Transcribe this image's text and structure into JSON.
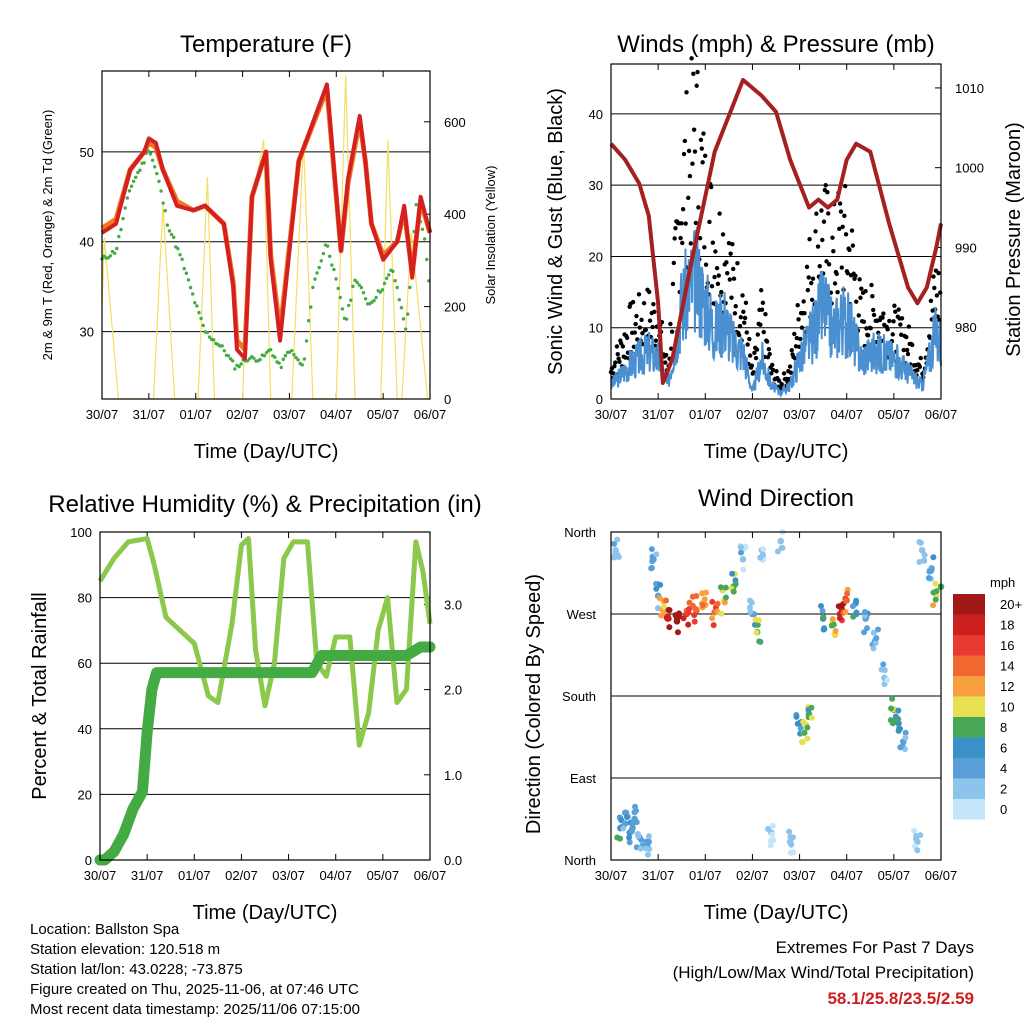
{
  "chart_data": [
    {
      "type": "line",
      "title": "Temperature (F)",
      "xlabel": "Time (Day/UTC)",
      "ylabel": "2m & 9m T (Red, Orange) & 2m Td (Green)",
      "ylabel_right": "Solar Insolation (Yellow)",
      "x_ticks": [
        "30/07",
        "31/07",
        "01/07",
        "02/07",
        "03/07",
        "04/07",
        "05/07",
        "06/07"
      ],
      "ylim": [
        22.5,
        59
      ],
      "y_ticks": [
        30,
        40,
        50
      ],
      "ylim_right": [
        0,
        710
      ],
      "y_ticks_right": [
        0,
        200,
        400,
        600
      ],
      "series": [
        {
          "name": "2m T",
          "color": "#d42020",
          "x": [
            0,
            0.3,
            0.6,
            0.9,
            1.0,
            1.15,
            1.3,
            1.6,
            1.95,
            2.2,
            2.6,
            2.8,
            2.88,
            3.05,
            3.2,
            3.5,
            3.6,
            3.8,
            4.2,
            4.8,
            5.1,
            5.25,
            5.5,
            5.62,
            5.75,
            6.0,
            6.3,
            6.45,
            6.62,
            6.8,
            7.0
          ],
          "values": [
            41,
            42,
            48,
            50,
            51.5,
            51,
            48,
            44,
            43.5,
            44,
            42,
            35,
            28,
            27,
            45,
            50,
            38,
            29,
            49,
            57.5,
            39,
            47,
            54,
            49,
            42,
            38,
            40,
            44,
            36,
            45,
            41
          ]
        },
        {
          "name": "9m T",
          "color": "#f07820",
          "x": [
            0,
            0.3,
            0.6,
            0.9,
            1.0,
            1.15,
            1.3,
            1.6,
            1.95,
            2.2,
            2.6,
            2.8,
            2.88,
            3.05,
            3.2,
            3.5,
            3.6,
            3.8,
            4.2,
            4.8,
            5.1,
            5.25,
            5.5,
            5.62,
            5.75,
            6.0,
            6.3,
            6.45,
            6.62,
            6.8,
            7.0
          ],
          "values": [
            41.5,
            42.5,
            48,
            50,
            51,
            50.5,
            48,
            44.5,
            43.5,
            44,
            42,
            35.5,
            29,
            28,
            45,
            50,
            38.5,
            30,
            49,
            57,
            39,
            46.5,
            53.5,
            49,
            42,
            38.5,
            40,
            43.5,
            36.5,
            44.5,
            41
          ]
        },
        {
          "name": "2m Td",
          "color": "#44aa44",
          "x": [
            0,
            0.3,
            0.6,
            0.9,
            1.0,
            1.2,
            1.4,
            1.7,
            2.0,
            2.2,
            2.4,
            2.6,
            2.85,
            3.1,
            3.4,
            3.6,
            3.8,
            4.0,
            4.3,
            4.5,
            4.8,
            5.2,
            5.4,
            5.7,
            6.0,
            6.2,
            6.5,
            6.7,
            6.9,
            7.0
          ],
          "values": [
            38,
            39,
            46,
            49,
            50.5,
            47,
            42,
            38,
            33,
            30,
            29,
            28,
            26,
            27,
            27,
            28,
            26,
            28,
            26,
            35,
            40,
            31,
            36,
            33,
            35,
            37,
            30,
            44,
            40,
            34
          ]
        },
        {
          "name": "Solar Insolation",
          "color": "#f5de60",
          "axis": "right",
          "x": [
            0,
            0.05,
            0.35,
            0.6,
            0.7,
            1.1,
            1.3,
            1.55,
            1.7,
            2.05,
            2.25,
            2.4,
            2.55,
            3.0,
            3.15,
            3.45,
            3.6,
            3.9,
            4.05,
            4.3,
            4.5,
            4.85,
            5.0,
            5.2,
            5.4,
            5.55,
            5.7,
            5.95,
            6.1,
            6.3,
            6.4,
            6.6,
            6.95,
            7.0
          ],
          "values": [
            200,
            350,
            0,
            0,
            0,
            0,
            420,
            0,
            0,
            0,
            480,
            0,
            0,
            0,
            400,
            560,
            0,
            0,
            0,
            560,
            0,
            0,
            0,
            700,
            0,
            0,
            0,
            0,
            560,
            0,
            0,
            360,
            0,
            0
          ]
        }
      ]
    },
    {
      "type": "scatter",
      "title": "Winds (mph) & Pressure (mb)",
      "xlabel": "Time (Day/UTC)",
      "ylabel": "Sonic Wind & Gust (Blue, Black)",
      "ylabel_right": "Station Pressure (Maroon)",
      "x_ticks": [
        "30/07",
        "31/07",
        "01/07",
        "02/07",
        "03/07",
        "04/07",
        "05/07",
        "06/07"
      ],
      "ylim": [
        0,
        47
      ],
      "y_ticks": [
        0,
        10,
        20,
        30,
        40
      ],
      "ylim_right": [
        971,
        1013
      ],
      "y_ticks_right": [
        980,
        990,
        1000,
        1010
      ],
      "series": [
        {
          "name": "Pressure",
          "color": "#a52020",
          "type": "line",
          "axis": "right",
          "x": [
            0,
            0.3,
            0.6,
            0.8,
            1.0,
            1.1,
            1.3,
            1.7,
            2.2,
            2.6,
            2.8,
            3.2,
            3.5,
            3.8,
            4.2,
            4.4,
            4.6,
            4.8,
            5.0,
            5.2,
            5.5,
            5.9,
            6.3,
            6.5,
            6.7,
            6.9,
            7.0
          ],
          "values": [
            1003,
            1001,
            998,
            994,
            983,
            973,
            976,
            988,
            1002,
            1008,
            1011,
            1009,
            1007,
            1001,
            995,
            996,
            995,
            996,
            1001,
            1003,
            1002,
            993,
            985,
            983,
            985,
            990,
            993
          ]
        },
        {
          "name": "Sonic Wind",
          "color": "#4a90d0",
          "x": [
            0,
            0.4,
            0.8,
            1.0,
            1.2,
            1.5,
            1.8,
            2.0,
            2.2,
            2.4,
            2.6,
            2.8,
            3.0,
            3.2,
            3.4,
            3.6,
            3.8,
            4.0,
            4.3,
            4.5,
            4.7,
            4.9,
            5.1,
            5.3,
            5.6,
            6.0,
            6.3,
            6.6,
            6.9,
            7.0
          ],
          "values": [
            2,
            5,
            7,
            6,
            2,
            14,
            18,
            14,
            10,
            12,
            8,
            7,
            1,
            6,
            2,
            1,
            2,
            6,
            10,
            14,
            10,
            12,
            10,
            6,
            7,
            6,
            4,
            2,
            10,
            8
          ]
        },
        {
          "name": "Gust",
          "color": "#000000",
          "x": [
            0,
            0.4,
            0.8,
            1.0,
            1.2,
            1.5,
            1.8,
            2.0,
            2.2,
            2.4,
            2.6,
            2.8,
            3.0,
            3.2,
            3.4,
            3.6,
            3.8,
            4.0,
            4.3,
            4.5,
            4.7,
            4.9,
            5.1,
            5.3,
            5.6,
            6.0,
            6.3,
            6.6,
            6.9,
            7.0
          ],
          "values": [
            4,
            10,
            12,
            11,
            4,
            30,
            38,
            28,
            22,
            22,
            16,
            14,
            3,
            12,
            4,
            2,
            4,
            12,
            20,
            24,
            20,
            24,
            20,
            12,
            12,
            10,
            8,
            4,
            16,
            14
          ]
        }
      ]
    },
    {
      "type": "line",
      "title": "Relative Humidity (%) & Precipitation (in)",
      "xlabel": "Time (Day/UTC)",
      "ylabel": "Percent & Total Rainfall",
      "x_ticks": [
        "30/07",
        "31/07",
        "01/07",
        "02/07",
        "03/07",
        "04/07",
        "05/07",
        "06/07"
      ],
      "ylim": [
        0,
        100
      ],
      "y_ticks": [
        0,
        20,
        40,
        60,
        80,
        100
      ],
      "ylim_right": [
        0,
        3.85
      ],
      "y_ticks_right": [
        "0.0",
        "1.0",
        "2.0",
        "3.0"
      ],
      "series": [
        {
          "name": "Relative Humidity",
          "color": "#8cc84b",
          "x": [
            0,
            0.3,
            0.6,
            1.0,
            1.15,
            1.4,
            1.7,
            2.0,
            2.3,
            2.5,
            2.6,
            2.8,
            3.0,
            3.15,
            3.3,
            3.5,
            3.7,
            3.9,
            4.1,
            4.4,
            4.6,
            4.8,
            5.0,
            5.3,
            5.5,
            5.7,
            5.9,
            6.1,
            6.3,
            6.5,
            6.7,
            6.85,
            7.0
          ],
          "values": [
            85,
            92,
            97,
            98,
            90,
            74,
            70,
            66,
            50,
            48,
            56,
            72,
            96,
            98,
            64,
            47,
            60,
            92,
            97,
            97,
            60,
            56,
            68,
            68,
            35,
            45,
            70,
            80,
            48,
            52,
            97,
            88,
            72
          ]
        },
        {
          "name": "Total Precipitation",
          "color": "#44aa44",
          "axis": "right",
          "x": [
            0,
            0.1,
            0.3,
            0.5,
            0.7,
            0.9,
            1.0,
            1.1,
            1.2,
            1.5,
            2.0,
            3.0,
            4.5,
            4.7,
            5.0,
            5.5,
            6.0,
            6.5,
            6.8,
            7.0
          ],
          "values": [
            0,
            0,
            0.1,
            0.3,
            0.6,
            0.8,
            1.5,
            2.0,
            2.2,
            2.2,
            2.2,
            2.2,
            2.2,
            2.4,
            2.4,
            2.4,
            2.4,
            2.4,
            2.5,
            2.5
          ]
        }
      ]
    },
    {
      "type": "scatter",
      "title": "Wind Direction",
      "xlabel": "Time (Day/UTC)",
      "ylabel": "Direction (Colored By Speed)",
      "x_ticks": [
        "30/07",
        "31/07",
        "01/07",
        "02/07",
        "03/07",
        "04/07",
        "05/07",
        "06/07"
      ],
      "y_ticks": [
        "North",
        "East",
        "South",
        "West",
        "North"
      ],
      "ylim": [
        0,
        360
      ],
      "legend": {
        "title": "mph",
        "levels": [
          "20+",
          "18",
          "16",
          "14",
          "12",
          "10",
          "8",
          "6",
          "4",
          "2",
          "0"
        ],
        "colors": [
          "#a01818",
          "#cc2020",
          "#e83a30",
          "#f06830",
          "#f8a040",
          "#e8e050",
          "#48a858",
          "#3c90c8",
          "#5a9fd8",
          "#8cc4ec",
          "#c4e6f8"
        ]
      },
      "points": [
        {
          "x": 0.2,
          "deg": 35,
          "mph": 6
        },
        {
          "x": 0.3,
          "deg": 40,
          "mph": 4
        },
        {
          "x": 0.4,
          "deg": 30,
          "mph": 6
        },
        {
          "x": 0.5,
          "deg": 45,
          "mph": 4
        },
        {
          "x": 0.6,
          "deg": 25,
          "mph": 3
        },
        {
          "x": 0.8,
          "deg": 20,
          "mph": 3
        },
        {
          "x": 0.1,
          "deg": 340,
          "mph": 2
        },
        {
          "x": 0.9,
          "deg": 330,
          "mph": 3
        },
        {
          "x": 1.0,
          "deg": 290,
          "mph": 4
        },
        {
          "x": 1.1,
          "deg": 275,
          "mph": 12
        },
        {
          "x": 1.2,
          "deg": 265,
          "mph": 18
        },
        {
          "x": 1.4,
          "deg": 262,
          "mph": 20
        },
        {
          "x": 1.6,
          "deg": 270,
          "mph": 16
        },
        {
          "x": 1.8,
          "deg": 275,
          "mph": 14
        },
        {
          "x": 2.0,
          "deg": 280,
          "mph": 12
        },
        {
          "x": 2.2,
          "deg": 272,
          "mph": 14
        },
        {
          "x": 2.4,
          "deg": 285,
          "mph": 10
        },
        {
          "x": 2.6,
          "deg": 300,
          "mph": 8
        },
        {
          "x": 2.8,
          "deg": 330,
          "mph": 2
        },
        {
          "x": 3.0,
          "deg": 270,
          "mph": 4
        },
        {
          "x": 3.1,
          "deg": 250,
          "mph": 8
        },
        {
          "x": 3.2,
          "deg": 340,
          "mph": 1
        },
        {
          "x": 3.4,
          "deg": 30,
          "mph": 1
        },
        {
          "x": 3.6,
          "deg": 350,
          "mph": 1
        },
        {
          "x": 3.8,
          "deg": 20,
          "mph": 1
        },
        {
          "x": 4.0,
          "deg": 150,
          "mph": 6
        },
        {
          "x": 4.1,
          "deg": 140,
          "mph": 10
        },
        {
          "x": 4.2,
          "deg": 160,
          "mph": 8
        },
        {
          "x": 4.5,
          "deg": 265,
          "mph": 6
        },
        {
          "x": 4.7,
          "deg": 260,
          "mph": 10
        },
        {
          "x": 4.9,
          "deg": 275,
          "mph": 18
        },
        {
          "x": 5.0,
          "deg": 285,
          "mph": 14
        },
        {
          "x": 5.2,
          "deg": 270,
          "mph": 6
        },
        {
          "x": 5.4,
          "deg": 265,
          "mph": 4
        },
        {
          "x": 5.6,
          "deg": 240,
          "mph": 3
        },
        {
          "x": 5.8,
          "deg": 200,
          "mph": 2
        },
        {
          "x": 6.0,
          "deg": 165,
          "mph": 8
        },
        {
          "x": 6.1,
          "deg": 150,
          "mph": 6
        },
        {
          "x": 6.2,
          "deg": 130,
          "mph": 4
        },
        {
          "x": 6.5,
          "deg": 20,
          "mph": 1
        },
        {
          "x": 6.6,
          "deg": 340,
          "mph": 2
        },
        {
          "x": 6.8,
          "deg": 320,
          "mph": 4
        },
        {
          "x": 6.9,
          "deg": 290,
          "mph": 10
        },
        {
          "x": 7.0,
          "deg": 300,
          "mph": 8
        }
      ]
    }
  ],
  "info": {
    "location": "Location: Ballston Spa",
    "elevation": "Station elevation: 120.518 m",
    "latlon": "Station lat/lon: 43.0228; -73.875",
    "created": "Figure created on Thu, 2025-11-06, at 07:46 UTC",
    "recent": "Most recent data timestamp: 2025/11/06 07:15:00"
  },
  "extremes": {
    "title": "Extremes For Past 7 Days",
    "subtitle": "(High/Low/Max Wind/Total Precipitation)",
    "values": "58.1/25.8/23.5/2.59",
    "color": "#cc2020"
  }
}
